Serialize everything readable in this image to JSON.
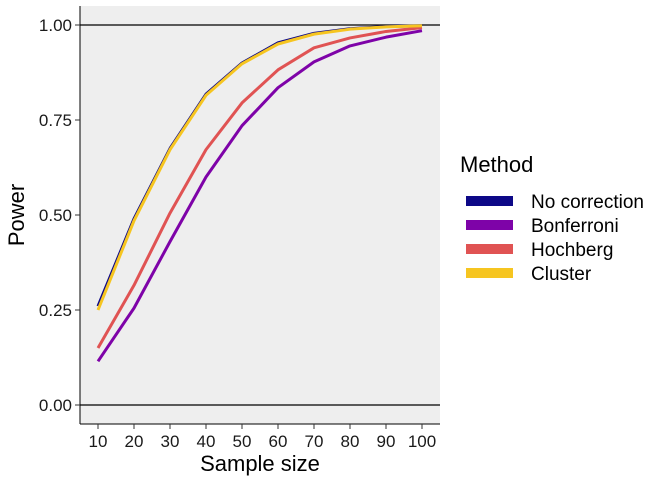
{
  "chart_data": {
    "type": "line",
    "xlabel": "Sample size",
    "ylabel": "Power",
    "x": [
      10,
      20,
      30,
      40,
      50,
      60,
      70,
      80,
      90,
      100
    ],
    "xlim": [
      5,
      105
    ],
    "ylim": [
      -0.05,
      1.05
    ],
    "xticks": [
      "10",
      "20",
      "30",
      "40",
      "50",
      "60",
      "70",
      "80",
      "90",
      "100"
    ],
    "yticks": [
      "0.00",
      "0.25",
      "0.50",
      "0.75",
      "1.00"
    ],
    "ytick_values": [
      0.0,
      0.25,
      0.5,
      0.75,
      1.0
    ],
    "hlines": [
      0,
      1
    ],
    "panel_background": "#eeeeee",
    "grid": false,
    "legend": {
      "title": "Method",
      "position": "right"
    },
    "series": [
      {
        "name": "No correction",
        "color": "#0d0887",
        "values": [
          0.26,
          0.49,
          0.675,
          0.818,
          0.9,
          0.953,
          0.978,
          0.99,
          0.996,
          0.998
        ]
      },
      {
        "name": "Bonferroni",
        "color": "#7e03a8",
        "values": [
          0.115,
          0.255,
          0.43,
          0.6,
          0.735,
          0.835,
          0.903,
          0.945,
          0.968,
          0.985
        ]
      },
      {
        "name": "Hochberg",
        "color": "#e05353",
        "values": [
          0.15,
          0.315,
          0.505,
          0.672,
          0.795,
          0.882,
          0.94,
          0.966,
          0.983,
          0.993
        ]
      },
      {
        "name": "Cluster",
        "color": "#f6c520",
        "values": [
          0.25,
          0.485,
          0.672,
          0.815,
          0.898,
          0.95,
          0.976,
          0.989,
          0.995,
          0.998
        ]
      }
    ]
  }
}
